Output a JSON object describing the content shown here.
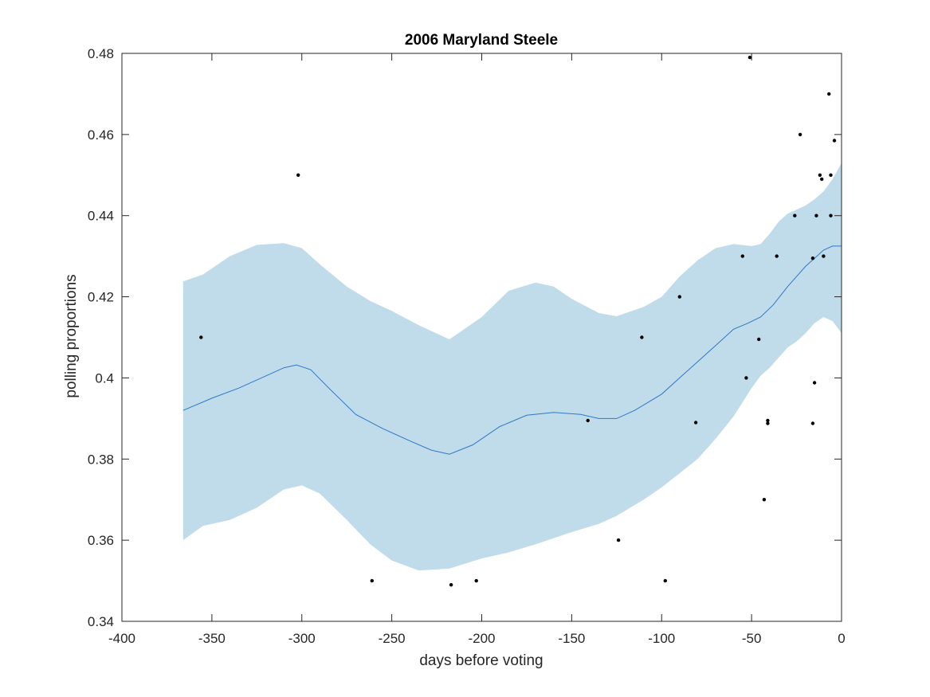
{
  "chart_data": {
    "type": "scatter",
    "title": "2006 Maryland Steele",
    "xlabel": "days before voting",
    "ylabel": "polling proportions",
    "xlim": [
      -400,
      0
    ],
    "ylim": [
      0.34,
      0.48
    ],
    "xticks": [
      -400,
      -350,
      -300,
      -250,
      -200,
      -150,
      -100,
      -50,
      0
    ],
    "yticks": [
      0.34,
      0.36,
      0.38,
      0.4,
      0.42,
      0.44,
      0.46,
      0.48
    ],
    "xtick_labels": [
      "-400",
      "-350",
      "-300",
      "-250",
      "-200",
      "-150",
      "-100",
      "-50",
      "0"
    ],
    "ytick_labels": [
      "0.34",
      "0.36",
      "0.38",
      "0.4",
      "0.42",
      "0.44",
      "0.46",
      "0.48"
    ],
    "grid": false,
    "colors": {
      "band": "#c0dceb",
      "mean_line": "#2f78c4",
      "points": "#000000",
      "axes": "#262626"
    },
    "series": [
      {
        "kind": "band",
        "x": [
          -366,
          -355,
          -340,
          -325,
          -310,
          -300,
          -290,
          -275,
          -262,
          -250,
          -235,
          -218,
          -200,
          -185,
          -170,
          -160,
          -150,
          -135,
          -125,
          -110,
          -100,
          -90,
          -80,
          -70,
          -60,
          -50,
          -45,
          -40,
          -35,
          -30,
          -25,
          -20,
          -15,
          -10,
          -5,
          0
        ],
        "upper": [
          0.4238,
          0.4255,
          0.43,
          0.4328,
          0.4332,
          0.432,
          0.428,
          0.4225,
          0.419,
          0.4165,
          0.413,
          0.4095,
          0.415,
          0.4215,
          0.4235,
          0.4225,
          0.4195,
          0.416,
          0.4152,
          0.4175,
          0.42,
          0.425,
          0.429,
          0.432,
          0.433,
          0.4325,
          0.433,
          0.4355,
          0.4385,
          0.4405,
          0.4415,
          0.4425,
          0.444,
          0.446,
          0.449,
          0.453
        ],
        "lower": [
          0.36,
          0.3635,
          0.365,
          0.368,
          0.3725,
          0.3735,
          0.3715,
          0.365,
          0.359,
          0.355,
          0.3525,
          0.353,
          0.3555,
          0.357,
          0.359,
          0.3605,
          0.362,
          0.364,
          0.366,
          0.37,
          0.373,
          0.3765,
          0.38,
          0.385,
          0.3905,
          0.3975,
          0.4005,
          0.4025,
          0.405,
          0.4075,
          0.409,
          0.411,
          0.4135,
          0.415,
          0.414,
          0.411
        ]
      },
      {
        "kind": "line",
        "x": [
          -366,
          -350,
          -335,
          -320,
          -310,
          -303,
          -295,
          -285,
          -270,
          -255,
          -240,
          -228,
          -218,
          -205,
          -190,
          -175,
          -160,
          -145,
          -135,
          -125,
          -115,
          -100,
          -90,
          -80,
          -70,
          -60,
          -52,
          -45,
          -38,
          -30,
          -25,
          -20,
          -15,
          -10,
          -5,
          0
        ],
        "y": [
          0.392,
          0.395,
          0.3975,
          0.4005,
          0.4025,
          0.4032,
          0.402,
          0.3975,
          0.391,
          0.3875,
          0.3845,
          0.3822,
          0.3812,
          0.3835,
          0.388,
          0.3908,
          0.3915,
          0.391,
          0.39,
          0.39,
          0.392,
          0.396,
          0.4,
          0.404,
          0.408,
          0.412,
          0.4135,
          0.415,
          0.418,
          0.4225,
          0.425,
          0.4275,
          0.4295,
          0.4315,
          0.4325,
          0.4325
        ]
      },
      {
        "kind": "scatter",
        "points": [
          [
            -356,
            0.41
          ],
          [
            -302,
            0.45
          ],
          [
            -261,
            0.35
          ],
          [
            -217,
            0.349
          ],
          [
            -203,
            0.35
          ],
          [
            -141,
            0.3895
          ],
          [
            -124,
            0.36
          ],
          [
            -111,
            0.41
          ],
          [
            -98,
            0.35
          ],
          [
            -90,
            0.42
          ],
          [
            -81,
            0.389
          ],
          [
            -55,
            0.43
          ],
          [
            -53,
            0.4
          ],
          [
            -51,
            0.479
          ],
          [
            -46,
            0.4095
          ],
          [
            -43,
            0.37
          ],
          [
            -41,
            0.3895
          ],
          [
            -41,
            0.3888
          ],
          [
            -36,
            0.43
          ],
          [
            -26,
            0.44
          ],
          [
            -23,
            0.46
          ],
          [
            -16,
            0.4295
          ],
          [
            -16,
            0.3888
          ],
          [
            -15,
            0.3988
          ],
          [
            -14,
            0.44
          ],
          [
            -12,
            0.45
          ],
          [
            -11,
            0.449
          ],
          [
            -10,
            0.43
          ],
          [
            -7,
            0.47
          ],
          [
            -6,
            0.45
          ],
          [
            -6,
            0.44
          ],
          [
            -4,
            0.4585
          ]
        ]
      }
    ]
  }
}
